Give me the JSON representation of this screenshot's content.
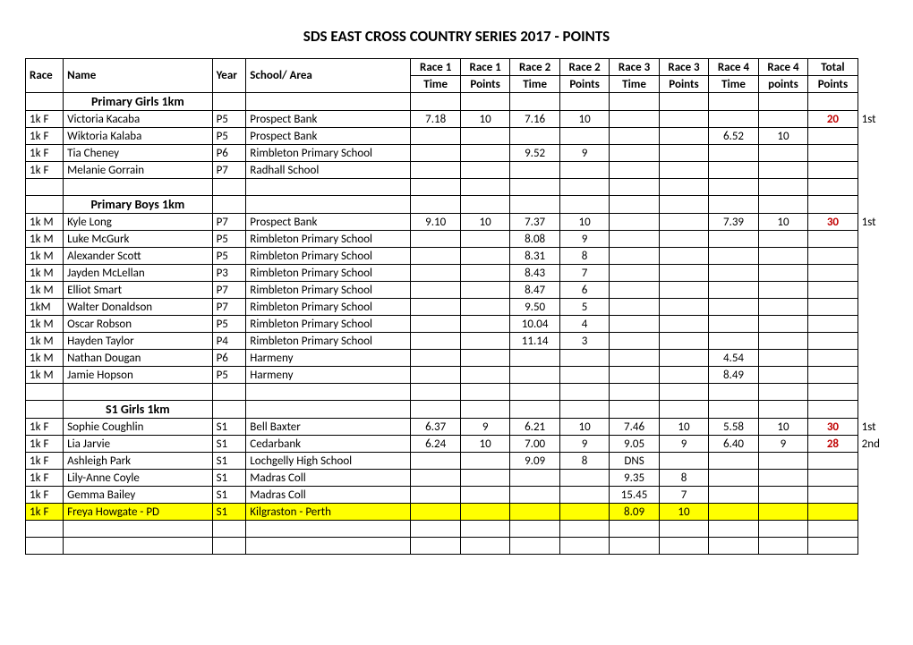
{
  "title": "SDS EAST CROSS COUNTRY SERIES 2017 - POINTS",
  "headers": {
    "race": "Race",
    "name": "Name",
    "year": "Year",
    "school": "School/ Area",
    "r1t": "Race 1 Time",
    "r1p": "Race 1 Points",
    "r2t": "Race 2 Time",
    "r2p": "Race 2 Points",
    "r3t": "Race 3 Time",
    "r3p": "Race 3 Points",
    "r4t": "Race 4 Time",
    "r4p": "Race 4 points",
    "total": "Total Points"
  },
  "sections": [
    {
      "title": "Primary Girls 1km",
      "rows": [
        {
          "race": "1k F",
          "name": "Victoria Kacaba",
          "year": "P5",
          "school": "Prospect Bank",
          "r1t": "7.18",
          "r1p": "10",
          "r2t": "7.16",
          "r2p": "10",
          "r3t": "",
          "r3p": "",
          "r4t": "",
          "r4p": "",
          "total": "20",
          "place": "1st",
          "hl": false
        },
        {
          "race": "1k F",
          "name": "Wiktoria Kalaba",
          "year": "P5",
          "school": "Prospect Bank",
          "r1t": "",
          "r1p": "",
          "r2t": "",
          "r2p": "",
          "r3t": "",
          "r3p": "",
          "r4t": "6.52",
          "r4p": "10",
          "total": "",
          "place": "",
          "hl": false
        },
        {
          "race": "1k F",
          "name": "Tia Cheney",
          "year": "P6",
          "school": "Rimbleton Primary  School",
          "r1t": "",
          "r1p": "",
          "r2t": "9.52",
          "r2p": "9",
          "r3t": "",
          "r3p": "",
          "r4t": "",
          "r4p": "",
          "total": "",
          "place": "",
          "hl": false
        },
        {
          "race": "1k F",
          "name": "Melanie Gorrain",
          "year": "P7",
          "school": "Radhall School",
          "r1t": "",
          "r1p": "",
          "r2t": "",
          "r2p": "",
          "r3t": "",
          "r3p": "",
          "r4t": "",
          "r4p": "",
          "total": "",
          "place": "",
          "hl": false
        }
      ]
    },
    {
      "title": "Primary Boys 1km",
      "rows": [
        {
          "race": "1k M",
          "name": "Kyle Long",
          "year": "P7",
          "school": "Prospect Bank",
          "r1t": "9.10",
          "r1p": "10",
          "r2t": "7.37",
          "r2p": "10",
          "r3t": "",
          "r3p": "",
          "r4t": "7.39",
          "r4p": "10",
          "total": "30",
          "place": "1st",
          "hl": false
        },
        {
          "race": "1k M",
          "name": "Luke McGurk",
          "year": "P5",
          "school": "Rimbleton Primary  School",
          "r1t": "",
          "r1p": "",
          "r2t": "8.08",
          "r2p": "9",
          "r3t": "",
          "r3p": "",
          "r4t": "",
          "r4p": "",
          "total": "",
          "place": "",
          "hl": false
        },
        {
          "race": "1k M",
          "name": "Alexander Scott",
          "year": "P5",
          "school": "Rimbleton Primary  School",
          "r1t": "",
          "r1p": "",
          "r2t": "8.31",
          "r2p": "8",
          "r3t": "",
          "r3p": "",
          "r4t": "",
          "r4p": "",
          "total": "",
          "place": "",
          "hl": false
        },
        {
          "race": "1k M",
          "name": "Jayden McLellan",
          "year": "P3",
          "school": "Rimbleton Primary  School",
          "r1t": "",
          "r1p": "",
          "r2t": "8.43",
          "r2p": "7",
          "r3t": "",
          "r3p": "",
          "r4t": "",
          "r4p": "",
          "total": "",
          "place": "",
          "hl": false
        },
        {
          "race": "1k M",
          "name": "Elliot Smart",
          "year": "P7",
          "school": "Rimbleton Primary  School",
          "r1t": "",
          "r1p": "",
          "r2t": "8.47",
          "r2p": "6",
          "r3t": "",
          "r3p": "",
          "r4t": "",
          "r4p": "",
          "total": "",
          "place": "",
          "hl": false
        },
        {
          "race": "1kM",
          "name": "Walter Donaldson",
          "year": "P7",
          "school": "Rimbleton Primary  School",
          "r1t": "",
          "r1p": "",
          "r2t": "9.50",
          "r2p": "5",
          "r3t": "",
          "r3p": "",
          "r4t": "",
          "r4p": "",
          "total": "",
          "place": "",
          "hl": false
        },
        {
          "race": "1k M",
          "name": "Oscar Robson",
          "year": "P5",
          "school": "Rimbleton Primary  School",
          "r1t": "",
          "r1p": "",
          "r2t": "10.04",
          "r2p": "4",
          "r3t": "",
          "r3p": "",
          "r4t": "",
          "r4p": "",
          "total": "",
          "place": "",
          "hl": false
        },
        {
          "race": "1k M",
          "name": "Hayden Taylor",
          "year": "P4",
          "school": "Rimbleton Primary  School",
          "r1t": "",
          "r1p": "",
          "r2t": "11.14",
          "r2p": "3",
          "r3t": "",
          "r3p": "",
          "r4t": "",
          "r4p": "",
          "total": "",
          "place": "",
          "hl": false
        },
        {
          "race": "1k M",
          "name": "Nathan Dougan",
          "year": "P6",
          "school": "Harmeny",
          "r1t": "",
          "r1p": "",
          "r2t": "",
          "r2p": "",
          "r3t": "",
          "r3p": "",
          "r4t": "4.54",
          "r4p": "",
          "total": "",
          "place": "",
          "hl": false
        },
        {
          "race": "1k M",
          "name": "Jamie Hopson",
          "year": "P5",
          "school": "Harmeny",
          "r1t": "",
          "r1p": "",
          "r2t": "",
          "r2p": "",
          "r3t": "",
          "r3p": "",
          "r4t": "8.49",
          "r4p": "",
          "total": "",
          "place": "",
          "hl": false
        }
      ]
    },
    {
      "title": "S1 Girls 1km",
      "rows": [
        {
          "race": "1k F",
          "name": "Sophie Coughlin",
          "year": "S1",
          "school": "Bell Baxter",
          "r1t": "6.37",
          "r1p": "9",
          "r2t": "6.21",
          "r2p": "10",
          "r3t": "7.46",
          "r3p": "10",
          "r4t": "5.58",
          "r4p": "10",
          "total": "30",
          "place": "1st",
          "hl": false
        },
        {
          "race": "1k F",
          "name": "Lia Jarvie",
          "year": "S1",
          "school": "Cedarbank",
          "r1t": "6.24",
          "r1p": "10",
          "r2t": "7.00",
          "r2p": "9",
          "r3t": "9.05",
          "r3p": "9",
          "r4t": "6.40",
          "r4p": "9",
          "total": "28",
          "place": "2nd",
          "hl": false
        },
        {
          "race": "1k F",
          "name": "Ashleigh Park",
          "year": "S1",
          "school": "Lochgelly High School",
          "r1t": "",
          "r1p": "",
          "r2t": "9.09",
          "r2p": "8",
          "r3t": "DNS",
          "r3p": "",
          "r4t": "",
          "r4p": "",
          "total": "",
          "place": "",
          "hl": false
        },
        {
          "race": "1k F",
          "name": "Lily-Anne Coyle",
          "year": "S1",
          "school": "Madras Coll",
          "r1t": "",
          "r1p": "",
          "r2t": "",
          "r2p": "",
          "r3t": "9.35",
          "r3p": "8",
          "r4t": "",
          "r4p": "",
          "total": "",
          "place": "",
          "hl": false
        },
        {
          "race": "1k F",
          "name": "Gemma Bailey",
          "year": "S1",
          "school": "Madras Coll",
          "r1t": "",
          "r1p": "",
          "r2t": "",
          "r2p": "",
          "r3t": "15.45",
          "r3p": "7",
          "r4t": "",
          "r4p": "",
          "total": "",
          "place": "",
          "hl": false
        },
        {
          "race": "1k F",
          "name": "Freya Howgate - PD",
          "year": "S1",
          "school": "Kilgraston - Perth",
          "r1t": "",
          "r1p": "",
          "r2t": "",
          "r2p": "",
          "r3t": "8.09",
          "r3p": "10",
          "r4t": "",
          "r4p": "",
          "total": "",
          "place": "",
          "hl": true
        }
      ]
    }
  ]
}
